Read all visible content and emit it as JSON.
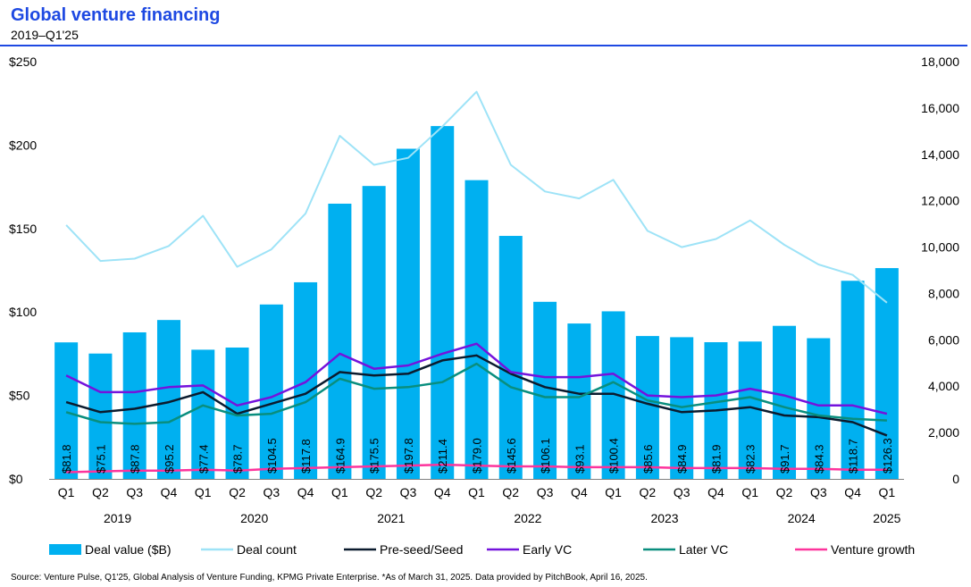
{
  "header": {
    "title": "Global venture financing",
    "subtitle": "2019–Q1'25"
  },
  "footer": {
    "source": "Source: Venture Pulse, Q1'25, Global Analysis of Venture Funding, KPMG Private Enterprise. *As of March 31, 2025. Data provided by PitchBook, April 16, 2025."
  },
  "chart_data": {
    "type": "bar",
    "categories": [
      "Q1",
      "Q2",
      "Q3",
      "Q4",
      "Q1",
      "Q2",
      "Q3",
      "Q4",
      "Q1",
      "Q2",
      "Q3",
      "Q4",
      "Q1",
      "Q2",
      "Q3",
      "Q4",
      "Q1",
      "Q2",
      "Q3",
      "Q4",
      "Q1",
      "Q2",
      "Q3",
      "Q4",
      "Q1"
    ],
    "year_groups": [
      {
        "label": "2019",
        "quarters": 4
      },
      {
        "label": "2020",
        "quarters": 4
      },
      {
        "label": "2021",
        "quarters": 4
      },
      {
        "label": "2022",
        "quarters": 4
      },
      {
        "label": "2023",
        "quarters": 4
      },
      {
        "label": "2024",
        "quarters": 4
      },
      {
        "label": "2025",
        "quarters": 1
      }
    ],
    "bar_labels": [
      "$81.8",
      "$75.1",
      "$87.8",
      "$95.2",
      "$77.4",
      "$78.7",
      "$104.5",
      "$117.8",
      "$164.9",
      "$175.5",
      "$197.8",
      "$211.4",
      "$179.0",
      "$145.6",
      "$106.1",
      "$93.1",
      "$100.4",
      "$85.6",
      "$84.9",
      "$81.9",
      "$82.3",
      "$91.7",
      "$84.3",
      "$118.7",
      "$126.3"
    ],
    "series": [
      {
        "name": "Deal value ($B)",
        "kind": "bar",
        "axis": "left",
        "color": "#00b0f0",
        "values": [
          81.8,
          75.1,
          87.8,
          95.2,
          77.4,
          78.7,
          104.5,
          117.8,
          164.9,
          175.5,
          197.8,
          211.4,
          179.0,
          145.6,
          106.1,
          93.1,
          100.4,
          85.6,
          84.9,
          81.9,
          82.3,
          91.7,
          84.3,
          118.7,
          126.3
        ]
      },
      {
        "name": "Deal count",
        "kind": "line",
        "axis": "right",
        "color": "#9ee3f7",
        "values": [
          10950,
          9400,
          9500,
          10050,
          11350,
          9150,
          9900,
          11450,
          14800,
          13550,
          13850,
          15200,
          16700,
          13550,
          12400,
          12100,
          12900,
          10700,
          10000,
          10350,
          11150,
          10100,
          9250,
          8800,
          7600
        ]
      },
      {
        "name": "Pre-seed/Seed",
        "kind": "line",
        "axis": "left",
        "color": "#0b1b2e",
        "values": [
          46,
          40,
          42,
          46,
          52,
          39,
          45,
          51,
          64,
          62,
          63,
          71,
          74,
          63,
          55,
          51,
          51,
          45,
          40,
          41,
          43,
          38,
          37,
          34,
          26
        ]
      },
      {
        "name": "Early VC",
        "kind": "line",
        "axis": "left",
        "color": "#7413dc",
        "values": [
          62,
          52,
          52,
          55,
          56,
          44,
          49,
          58,
          75,
          66,
          68,
          75,
          81,
          64,
          61,
          61,
          63,
          50,
          49,
          50,
          54,
          50,
          44,
          44,
          39
        ]
      },
      {
        "name": "Later VC",
        "kind": "line",
        "axis": "left",
        "color": "#098e7e",
        "values": [
          40,
          34,
          33,
          34,
          44,
          38,
          39,
          46,
          60,
          54,
          55,
          58,
          69,
          55,
          49,
          49,
          58,
          47,
          43,
          46,
          49,
          43,
          38,
          36,
          35
        ]
      },
      {
        "name": "Venture growth",
        "kind": "line",
        "axis": "left",
        "color": "#fd349c",
        "values": [
          4,
          4.5,
          5,
          5,
          5.5,
          5,
          6,
          6.5,
          7,
          7.5,
          8,
          8.5,
          8,
          7.5,
          7.5,
          7,
          7,
          7,
          6.5,
          6.5,
          6.5,
          6,
          6,
          5.5,
          5.5
        ]
      }
    ],
    "y_left": {
      "min": 0,
      "max": 250,
      "ticks": [
        "$0",
        "$50",
        "$100",
        "$150",
        "$200",
        "$250"
      ]
    },
    "y_right": {
      "min": 0,
      "max": 18000,
      "ticks": [
        "0",
        "2,000",
        "4,000",
        "6,000",
        "8,000",
        "10,000",
        "12,000",
        "14,000",
        "16,000",
        "18,000"
      ]
    },
    "grid": false,
    "legend_position": "bottom"
  }
}
